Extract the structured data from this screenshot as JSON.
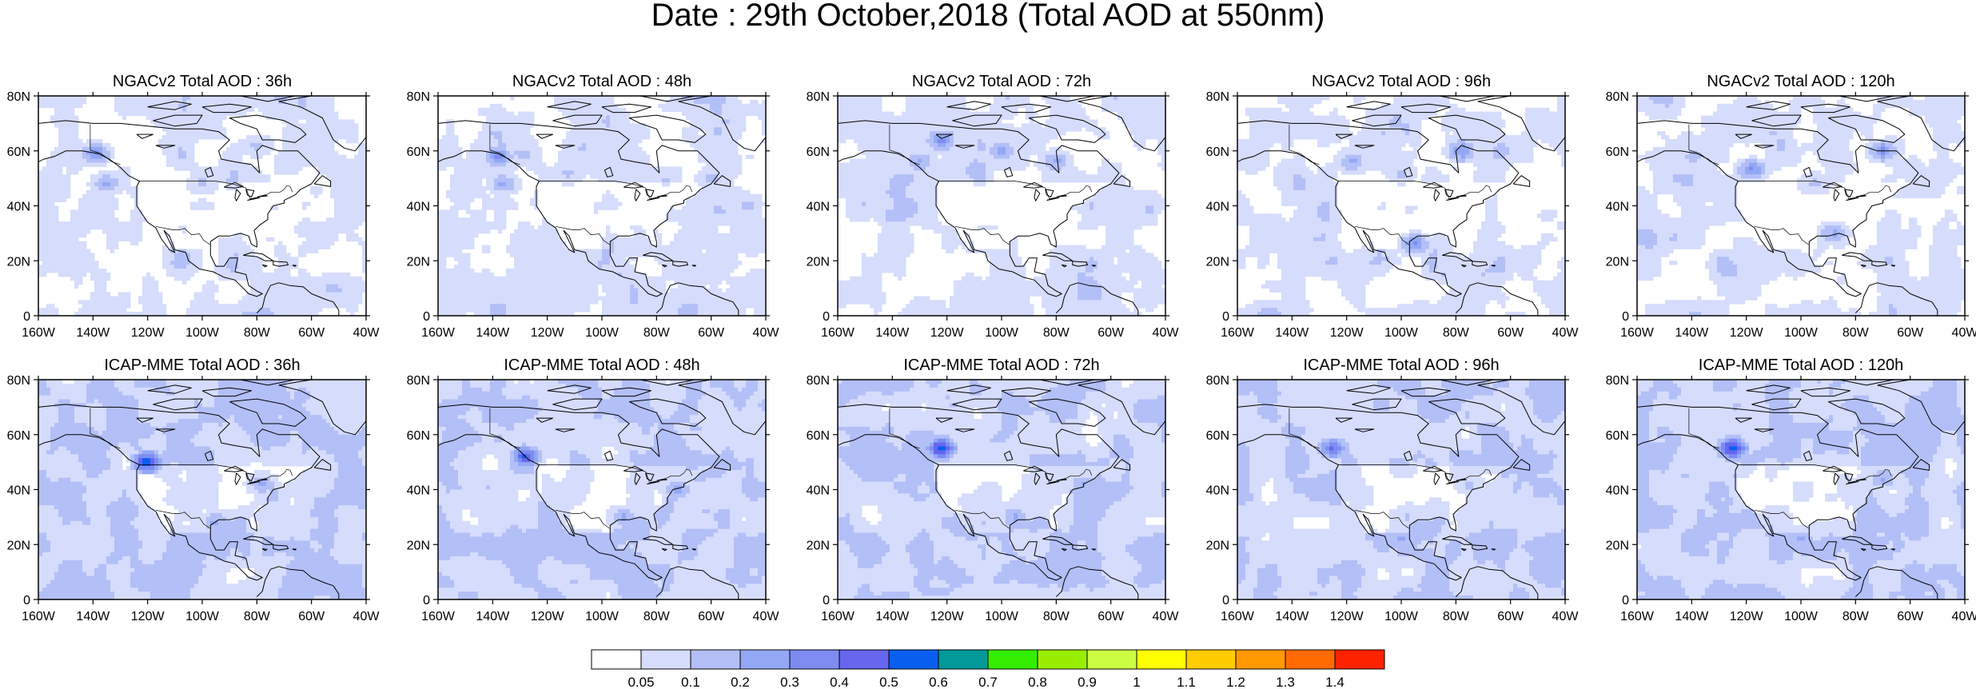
{
  "title": "Date : 29th October,2018 (Total AOD at 550nm)",
  "rows": [
    {
      "model": "NGACv2",
      "panels": [
        {
          "title": "NGACv2 Total AOD : 36h",
          "plumes": [
            {
              "lon": -139,
              "lat": 59,
              "level": 4
            },
            {
              "lon": -135,
              "lat": 48,
              "level": 3
            },
            {
              "lon": -100,
              "lat": 48,
              "level": 2
            },
            {
              "lon": -80,
              "lat": 62,
              "level": 2
            }
          ]
        },
        {
          "title": "NGACv2 Total AOD : 48h",
          "plumes": [
            {
              "lon": -138,
              "lat": 58,
              "level": 4
            },
            {
              "lon": -136,
              "lat": 48,
              "level": 3
            },
            {
              "lon": -112,
              "lat": 52,
              "level": 2
            },
            {
              "lon": -60,
              "lat": 50,
              "level": 2
            }
          ]
        },
        {
          "title": "NGACv2 Total AOD : 72h",
          "plumes": [
            {
              "lon": -122,
              "lat": 64,
              "level": 4
            },
            {
              "lon": -100,
              "lat": 60,
              "level": 3
            },
            {
              "lon": -80,
              "lat": 56,
              "level": 3
            },
            {
              "lon": -130,
              "lat": 56,
              "level": 3
            }
          ]
        },
        {
          "title": "NGACv2 Total AOD : 96h",
          "plumes": [
            {
              "lon": -118,
              "lat": 56,
              "level": 3
            },
            {
              "lon": -78,
              "lat": 60,
              "level": 4
            },
            {
              "lon": -95,
              "lat": 26,
              "level": 4
            },
            {
              "lon": -100,
              "lat": 52,
              "level": 2
            }
          ]
        },
        {
          "title": "NGACv2 Total AOD : 120h",
          "plumes": [
            {
              "lon": -118,
              "lat": 53,
              "level": 4
            },
            {
              "lon": -70,
              "lat": 60,
              "level": 4
            },
            {
              "lon": -88,
              "lat": 30,
              "level": 3
            },
            {
              "lon": -95,
              "lat": 48,
              "level": 2
            }
          ]
        }
      ]
    },
    {
      "model": "ICAP-MME",
      "panels": [
        {
          "title": "ICAP-MME Total AOD : 36h",
          "plumes": [
            {
              "lon": -120,
              "lat": 50,
              "level": 7
            },
            {
              "lon": -95,
              "lat": 28,
              "level": 3
            },
            {
              "lon": -78,
              "lat": 42,
              "level": 3
            }
          ]
        },
        {
          "title": "ICAP-MME Total AOD : 48h",
          "plumes": [
            {
              "lon": -128,
              "lat": 52,
              "level": 6
            },
            {
              "lon": -92,
              "lat": 30,
              "level": 3
            },
            {
              "lon": -72,
              "lat": 40,
              "level": 3
            }
          ]
        },
        {
          "title": "ICAP-MME Total AOD : 72h",
          "plumes": [
            {
              "lon": -122,
              "lat": 55,
              "level": 7
            },
            {
              "lon": -95,
              "lat": 30,
              "level": 3
            },
            {
              "lon": -70,
              "lat": 42,
              "level": 3
            }
          ]
        },
        {
          "title": "ICAP-MME Total AOD : 96h",
          "plumes": [
            {
              "lon": -125,
              "lat": 55,
              "level": 5
            },
            {
              "lon": -100,
              "lat": 22,
              "level": 3
            },
            {
              "lon": -75,
              "lat": 42,
              "level": 2
            }
          ]
        },
        {
          "title": "ICAP-MME Total AOD : 120h",
          "plumes": [
            {
              "lon": -125,
              "lat": 55,
              "level": 7
            },
            {
              "lon": -100,
              "lat": 22,
              "level": 3
            },
            {
              "lon": -70,
              "lat": 44,
              "level": 3
            }
          ]
        }
      ]
    }
  ],
  "map_extent": {
    "lon_min": -160,
    "lon_max": -40,
    "lat_min": 0,
    "lat_max": 80
  },
  "x_ticks": [
    "160W",
    "140W",
    "120W",
    "100W",
    "80W",
    "60W",
    "40W"
  ],
  "y_ticks": [
    "0",
    "20N",
    "40N",
    "60N",
    "80N"
  ],
  "colorbar": {
    "labels": [
      "0.05",
      "0.1",
      "0.2",
      "0.3",
      "0.4",
      "0.5",
      "0.6",
      "0.7",
      "0.8",
      "0.9",
      "1",
      "1.1",
      "1.2",
      "1.3",
      "1.4"
    ],
    "colors": [
      "#ffffff",
      "#d6dcfb",
      "#b3bff7",
      "#93a8f5",
      "#7e8cf2",
      "#6666ef",
      "#0a5ff0",
      "#049999",
      "#33ee00",
      "#99ee00",
      "#ccff44",
      "#ffff00",
      "#ffcc00",
      "#ff9900",
      "#ff6a00",
      "#ff2200"
    ]
  }
}
